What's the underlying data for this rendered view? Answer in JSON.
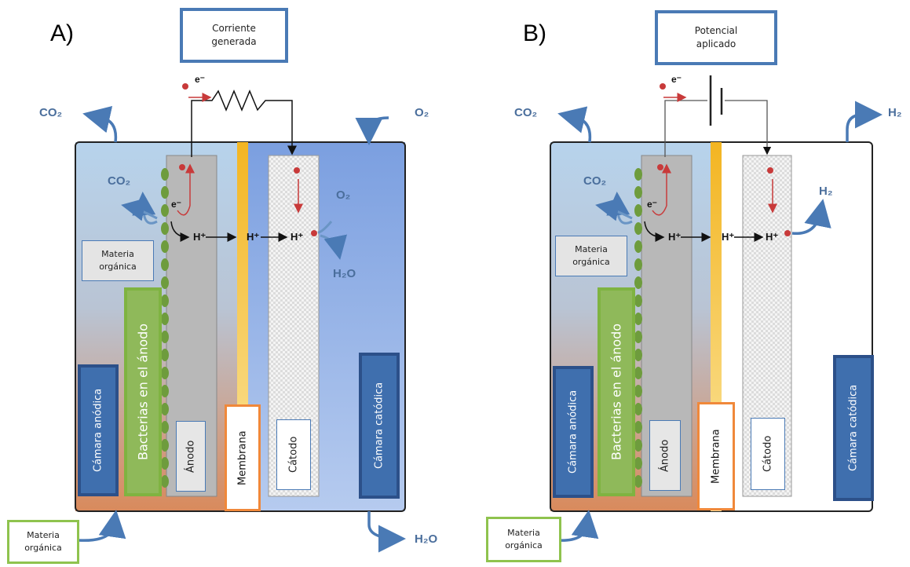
{
  "panel_a": {
    "letter": "A)",
    "circuit_label_1": "Corriente",
    "circuit_label_2": "generada",
    "co2_top": "CO₂",
    "o2_top": "O₂",
    "co2_inner": "CO₂",
    "o2_inner": "O₂",
    "h2o_inner": "H₂O",
    "h2o_out": "H₂O",
    "electron": "e⁻",
    "electron_inner": "e⁻",
    "hplus": "H⁺",
    "organic_inner_1": "Materia",
    "organic_inner_2": "orgánica",
    "organic_in_1": "Materia",
    "organic_in_2": "orgánica",
    "bacteria": "Bacterias en el ánodo",
    "anode_chamber": "Cámara anódica",
    "cathode_chamber": "Cámara catódica",
    "anode": "Ánodo",
    "membrane": "Membrana",
    "cathode": "Cátodo"
  },
  "panel_b": {
    "letter": "B)",
    "circuit_label_1": "Potencial",
    "circuit_label_2": "aplicado",
    "co2_top": "CO₂",
    "h2_top": "H₂",
    "co2_inner": "CO₂",
    "h2_inner": "H₂",
    "electron": "e⁻",
    "electron_inner": "e⁻",
    "hplus": "H⁺",
    "organic_inner_1": "Materia",
    "organic_inner_2": "orgánica",
    "organic_in_1": "Materia",
    "organic_in_2": "orgánica",
    "bacteria": "Bacterias en el ánodo",
    "anode_chamber": "Cámara anódica",
    "cathode_chamber": "Cámara catódica",
    "anode": "Ánodo",
    "membrane": "Membrana",
    "cathode": "Cátodo"
  },
  "colors": {
    "box_blue": "#4a7ab5",
    "box_green": "#8fc34e",
    "box_orange": "#f0883a",
    "label_fill": "#4a7fbf",
    "bacteria_fill": "#8db55a",
    "membrane": "#f4c430"
  }
}
